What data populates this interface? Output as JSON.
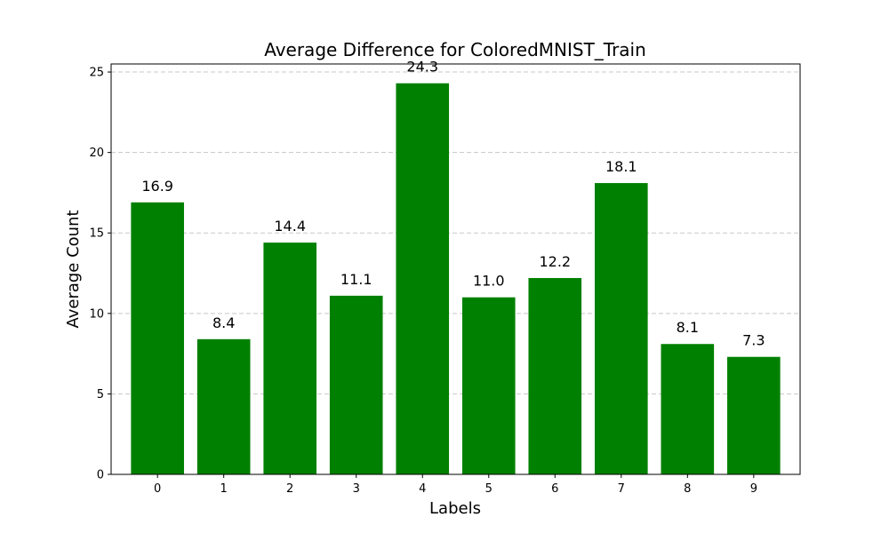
{
  "chart_data": {
    "type": "bar",
    "title": "Average Difference for ColoredMNIST_Train",
    "xlabel": "Labels",
    "ylabel": "Average Count",
    "categories": [
      "0",
      "1",
      "2",
      "3",
      "4",
      "5",
      "6",
      "7",
      "8",
      "9"
    ],
    "values": [
      16.9,
      8.4,
      14.4,
      11.1,
      24.3,
      11.0,
      12.2,
      18.1,
      8.1,
      7.3
    ],
    "data_labels": [
      "16.9",
      "8.4",
      "14.4",
      "11.1",
      "24.3",
      "11.0",
      "12.2",
      "18.1",
      "8.1",
      "7.3"
    ],
    "ylim": [
      0,
      25.5
    ],
    "yticks": [
      0,
      5,
      10,
      15,
      20,
      25
    ],
    "ytick_labels": [
      "0",
      "5",
      "10",
      "15",
      "20",
      "25"
    ],
    "grid": "y-dashed",
    "legend": "none",
    "bar_color": "#008000",
    "grid_color": "#c8c8c8"
  }
}
